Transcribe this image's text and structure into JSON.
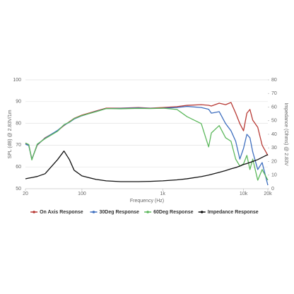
{
  "chart_data": {
    "type": "line",
    "x_label": "Frequency (Hz)",
    "y_label": "SPL (dB) @ 2.83V/1m",
    "y2_label": "Impedance (Ohms) @ 2.83V",
    "x_log": true,
    "grid": true,
    "legend": "bottom",
    "xlim": [
      20,
      20000
    ],
    "xticks": [
      20,
      100,
      {
        "value": 1000,
        "label": "1k"
      },
      {
        "value": 10000,
        "label": "10k"
      },
      {
        "value": 20000,
        "label": "20k"
      }
    ],
    "ylim": [
      50,
      100
    ],
    "yticks": [
      50,
      60,
      70,
      80,
      90,
      100
    ],
    "y2lim": [
      0,
      80
    ],
    "y2ticks": [
      0,
      10,
      20,
      30,
      40,
      50,
      60,
      70,
      80
    ],
    "x": [
      20,
      22,
      24,
      28,
      35,
      50,
      60,
      70,
      80,
      100,
      150,
      200,
      300,
      500,
      700,
      1000,
      1500,
      2000,
      3000,
      3700,
      4000,
      5000,
      6000,
      7000,
      8000,
      9000,
      10000,
      11000,
      12000,
      13000,
      15000,
      17000,
      20000
    ],
    "series": [
      {
        "name": "On Axis Response",
        "color": "#b83a35",
        "values": [
          70.8,
          70,
          63.6,
          70,
          73.4,
          76.6,
          79,
          80.8,
          82.3,
          83.8,
          85.7,
          87,
          87,
          87.3,
          87,
          87.3,
          87.7,
          88.3,
          88.6,
          88.3,
          88,
          89.3,
          88.6,
          89.6,
          84.7,
          79.9,
          76.6,
          84.7,
          86.4,
          81.5,
          78.2,
          70,
          65.3
        ]
      },
      {
        "name": "30Deg Response",
        "color": "#3f6fbf",
        "values": [
          70.5,
          69.8,
          63.5,
          70.2,
          73.2,
          76.8,
          79.2,
          80.5,
          82,
          83.5,
          85.5,
          86.8,
          86.9,
          87.1,
          86.9,
          87,
          87.3,
          87.8,
          87.3,
          86.5,
          84.7,
          85.4,
          79.9,
          76.6,
          71.8,
          63.6,
          68.5,
          75,
          73.4,
          66.9,
          58.8,
          62,
          51.6
        ]
      },
      {
        "name": "60Deg Response",
        "color": "#5cb85c",
        "values": [
          71,
          70.3,
          63.2,
          70.5,
          73,
          76.4,
          79.4,
          80.6,
          82.2,
          83.6,
          85.4,
          86.8,
          86.7,
          86.9,
          86.8,
          87,
          86.4,
          83.1,
          79.9,
          69.2,
          75.6,
          79,
          73.4,
          71.8,
          63.6,
          60.4,
          61.4,
          65.3,
          58.8,
          63.6,
          53.9,
          58.8,
          53.9
        ]
      },
      {
        "name": "Impedance Response",
        "color": "#111111",
        "axis": "y2",
        "values": [
          7.3,
          7.8,
          8.2,
          9,
          11,
          21.4,
          27.7,
          21.4,
          13.6,
          9.4,
          6.8,
          5.8,
          5.2,
          5.2,
          5.4,
          5.8,
          6.5,
          7.3,
          8.9,
          10,
          10.5,
          12,
          13.3,
          14.6,
          15.5,
          16.6,
          17.8,
          18.5,
          19.3,
          20,
          21.4,
          23,
          25.1
        ]
      }
    ]
  }
}
